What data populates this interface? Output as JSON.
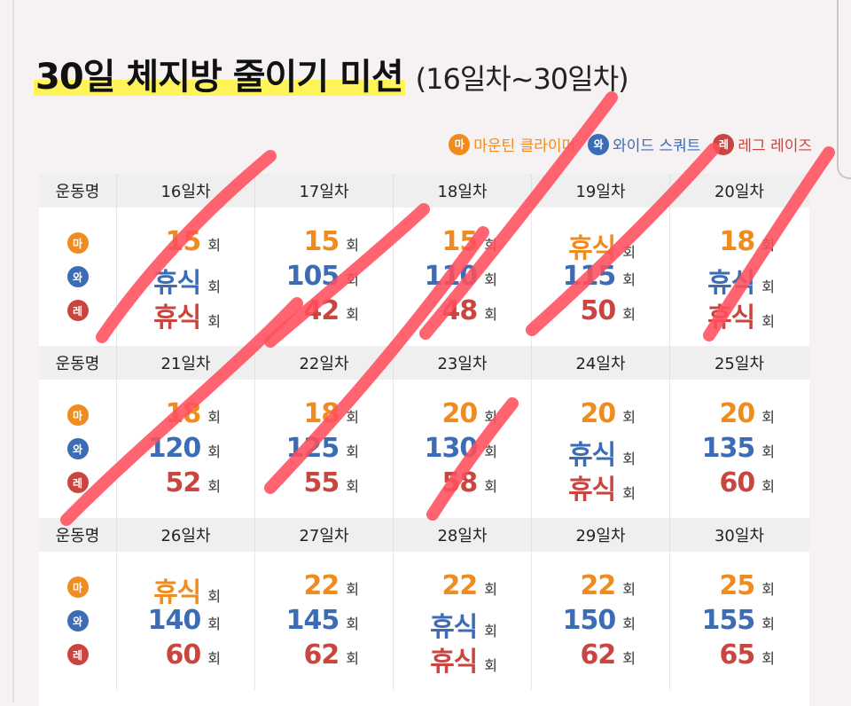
{
  "title": "30일 체지방 줄이기 미션",
  "subtitle": "(16일차~30일차)",
  "legend": [
    {
      "badge": "마",
      "label": "마운틴 클라이머",
      "color": "#ef8c1f"
    },
    {
      "badge": "와",
      "label": "와이드 스쿼트",
      "color": "#3b6cb5"
    },
    {
      "badge": "레",
      "label": "레그 레이즈",
      "color": "#c8463f"
    }
  ],
  "table": {
    "header_label": "운동명",
    "unit": "회",
    "badges": [
      "마",
      "와",
      "레"
    ],
    "rows": [
      {
        "days": [
          {
            "label": "16일차",
            "values": [
              "15",
              "휴식",
              "휴식"
            ]
          },
          {
            "label": "17일차",
            "values": [
              "15",
              "105",
              "42"
            ]
          },
          {
            "label": "18일차",
            "values": [
              "15",
              "110",
              "48"
            ]
          },
          {
            "label": "19일차",
            "values": [
              "휴식",
              "115",
              "50"
            ]
          },
          {
            "label": "20일차",
            "values": [
              "18",
              "휴식",
              "휴식"
            ]
          }
        ]
      },
      {
        "days": [
          {
            "label": "21일차",
            "values": [
              "18",
              "120",
              "52"
            ]
          },
          {
            "label": "22일차",
            "values": [
              "18",
              "125",
              "55"
            ]
          },
          {
            "label": "23일차",
            "values": [
              "20",
              "130",
              "58"
            ]
          },
          {
            "label": "24일차",
            "values": [
              "20",
              "휴식",
              "휴식"
            ]
          },
          {
            "label": "25일차",
            "values": [
              "20",
              "135",
              "60"
            ]
          }
        ]
      },
      {
        "days": [
          {
            "label": "26일차",
            "values": [
              "휴식",
              "140",
              "60"
            ]
          },
          {
            "label": "27일차",
            "values": [
              "22",
              "145",
              "62"
            ]
          },
          {
            "label": "28일차",
            "values": [
              "22",
              "휴식",
              "휴식"
            ]
          },
          {
            "label": "29일차",
            "values": [
              "22",
              "150",
              "62"
            ]
          },
          {
            "label": "30일차",
            "values": [
              "25",
              "155",
              "65"
            ]
          }
        ]
      }
    ]
  },
  "colors": {
    "mountain": "#ef8c1f",
    "squat": "#3b6cb5",
    "legraise": "#c8463f",
    "highlight": "#fff35a",
    "strike": "#ff4f5c"
  }
}
